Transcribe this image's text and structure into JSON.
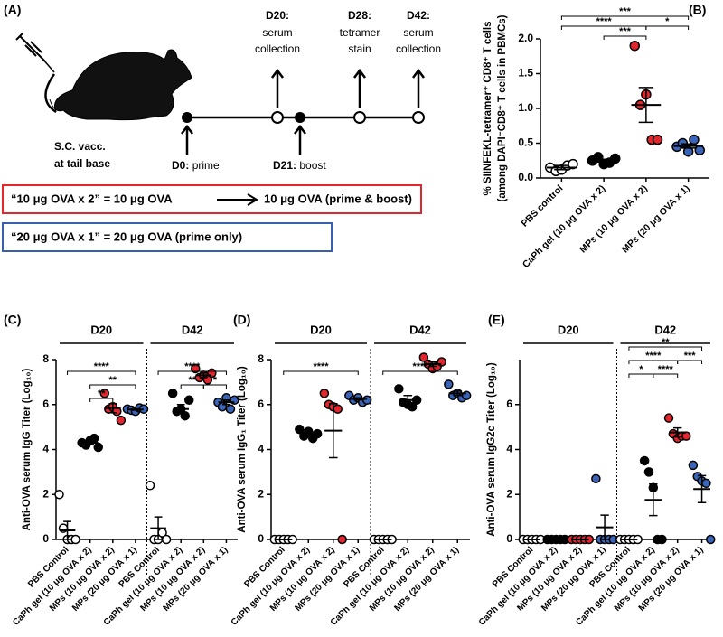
{
  "diagram": {
    "panel": "(A)",
    "injection": [
      "S.C. vacc.",
      "at tail base"
    ],
    "timepoints": [
      {
        "day": "D0:",
        "event": [
          "prime"
        ]
      },
      {
        "day": "D20:",
        "event": [
          "serum",
          "collection"
        ]
      },
      {
        "day": "D21:",
        "event": [
          "boost"
        ]
      },
      {
        "day": "D28:",
        "event": [
          "tetramer",
          "stain"
        ]
      },
      {
        "day": "D42:",
        "event": [
          "serum",
          "collection"
        ]
      }
    ],
    "boxes": [
      {
        "left": "“10 μg OVA x 2” = 10 μg OVA",
        "right": "10 μg OVA (prime & boost)",
        "color": "#e3262e"
      },
      {
        "left": "“20 μg OVA x 1” = 20 μg OVA (prime only)",
        "color": "#3a5fb0"
      }
    ]
  },
  "chart_data": [
    {
      "type": "dot",
      "panel": "(B)",
      "ylabel": [
        "% SIINFEKL-tetramer⁺ CD8⁺ T cells",
        "(among DAPI⁻CD8⁺ T cells in PBMCs)"
      ],
      "categories": [
        "PBS control",
        "CaPh gel (10 μg OVA x 2)",
        "MPs (10 μg OVA x 2)",
        "MPs (20 μg OVA x 1)"
      ],
      "colors": [
        "#ffffff",
        "#000000",
        "#e3262e",
        "#3a64b8"
      ],
      "points": [
        [
          0.15,
          0.1,
          0.12,
          0.18,
          0.2
        ],
        [
          0.25,
          0.3,
          0.2,
          0.22,
          0.28
        ],
        [
          1.9,
          1.05,
          1.2,
          0.55,
          0.55
        ],
        [
          0.45,
          0.5,
          0.38,
          0.55,
          0.4
        ]
      ],
      "means": [
        0.15,
        0.25,
        1.05,
        0.46
      ],
      "errors": [
        0.03,
        0.02,
        0.25,
        0.03
      ],
      "ylim": [
        0,
        2
      ],
      "yticks": [
        {
          "value": 0,
          "label": "0.0"
        },
        {
          "value": 0.5,
          "label": "0.5"
        },
        {
          "value": 1,
          "label": "1.0"
        },
        {
          "value": 1.5,
          "label": "1.5"
        },
        {
          "value": 2,
          "label": "2.0"
        }
      ],
      "comparisons": [
        {
          "pair": [
            0,
            3
          ],
          "label": "***"
        },
        {
          "pair": [
            0,
            2
          ],
          "label": "****"
        },
        {
          "pair": [
            1,
            2
          ],
          "label": "***"
        },
        {
          "pair": [
            2,
            3
          ],
          "label": "*"
        }
      ]
    },
    {
      "type": "dot",
      "panel": "(C)",
      "ylabel": "Anti-OVA serum IgG Titer (Log₁₀)",
      "groups": [
        "D20",
        "D42"
      ],
      "categories": [
        "PBS Control",
        "CaPh gel (10 μg OVA x 2)",
        "MPs (10 μg OVA x 2)",
        "MPs (20 μg OVA x 1)",
        "PBS Control",
        "CaPh gel (10 μg OVA x 2)",
        "MPs (10 μg OVA x 2)",
        "MPs (20 μg OVA x 1)"
      ],
      "colors": [
        "#ffffff",
        "#000000",
        "#e3262e",
        "#3a64b8",
        "#ffffff",
        "#000000",
        "#e3262e",
        "#3a64b8"
      ],
      "points": [
        [
          2,
          0.5,
          0,
          0,
          0
        ],
        [
          4.3,
          4.2,
          4.4,
          4.5,
          4.1
        ],
        [
          6.5,
          5.8,
          5.9,
          5.7,
          5.3
        ],
        [
          5.8,
          5.75,
          5.7,
          5.85,
          5.8
        ],
        [
          2.4,
          0,
          0,
          0.3,
          0
        ],
        [
          6.5,
          5.7,
          5.8,
          5.5,
          6.2
        ],
        [
          7.6,
          7.2,
          7.3,
          7.1,
          7.4
        ],
        [
          6.1,
          5.9,
          6.3,
          5.8,
          6.2
        ]
      ],
      "means": [
        0.4,
        4.3,
        5.84,
        5.78,
        0.5,
        5.8,
        7.3,
        6.1
      ],
      "errors": [
        0.4,
        0.08,
        0.2,
        0.03,
        0.5,
        0.2,
        0.1,
        0.1
      ],
      "ylim": [
        0,
        8
      ],
      "yticks": [
        0,
        2,
        4,
        6,
        8
      ],
      "comparisons": [
        {
          "pair": [
            0,
            3
          ],
          "label": "****"
        },
        {
          "pair": [
            1,
            3
          ],
          "label": "**"
        },
        {
          "pair": [
            1,
            2
          ],
          "label": "**"
        },
        {
          "pair": [
            4,
            7
          ],
          "label": "****"
        },
        {
          "pair": [
            5,
            6
          ],
          "label": "**"
        },
        {
          "pair": [
            6,
            7
          ],
          "label": "*"
        }
      ]
    },
    {
      "type": "dot",
      "panel": "(D)",
      "ylabel": "Anti-OVA serum IgG₁ Titer (Log₁₀)",
      "groups": [
        "D20",
        "D42"
      ],
      "categories": [
        "PBS Control",
        "CaPh gel (10 μg OVA x 2)",
        "MPs (10 μg OVA x 2)",
        "MPs (20 μg OVA x 1)",
        "PBS Control",
        "CaPh gel (10 μg OVA x 2)",
        "MPs (10 μg OVA x 2)",
        "MPs (20 μg OVA x 1)"
      ],
      "colors": [
        "#ffffff",
        "#000000",
        "#e3262e",
        "#3a64b8",
        "#ffffff",
        "#000000",
        "#e3262e",
        "#3a64b8"
      ],
      "points": [
        [
          0,
          0,
          0,
          0,
          0
        ],
        [
          4.9,
          4.6,
          4.8,
          4.5,
          4.7
        ],
        [
          6.5,
          6.0,
          5.9,
          5.8,
          0
        ],
        [
          6.4,
          6.2,
          6.3,
          6.1,
          6.2
        ],
        [
          0,
          0,
          0,
          0,
          0
        ],
        [
          6.7,
          6.1,
          6.0,
          5.9,
          6.2
        ],
        [
          8.1,
          7.8,
          7.6,
          7.7,
          7.9
        ],
        [
          6.9,
          6.4,
          6.5,
          6.3,
          6.4
        ]
      ],
      "means": [
        0,
        4.7,
        4.84,
        6.25,
        0,
        6.2,
        7.8,
        6.5
      ],
      "errors": [
        0,
        0.1,
        1.2,
        0.05,
        0,
        0.2,
        0.1,
        0.1
      ],
      "ylim": [
        0,
        8
      ],
      "yticks": [
        0,
        2,
        4,
        6,
        8
      ],
      "comparisons": [
        {
          "pair": [
            0,
            3
          ],
          "label": "****"
        },
        {
          "pair": [
            4,
            7
          ],
          "label": "****"
        }
      ]
    },
    {
      "type": "dot",
      "panel": "(E)",
      "ylabel": "Anti-OVA serum IgG2c Titer (Log₁₀)",
      "groups": [
        "D20",
        "D42"
      ],
      "categories": [
        "PBS Control",
        "CaPh gel (10 μg OVA x 2)",
        "MPs (10 μg OVA x 2)",
        "MPs (20 μg OVA x 1)",
        "PBS Control",
        "CaPh gel (10 μg OVA x 2)",
        "MPs (10 μg OVA x 2)",
        "MPs (20 μg OVA x 1)"
      ],
      "colors": [
        "#ffffff",
        "#000000",
        "#e3262e",
        "#3a64b8",
        "#ffffff",
        "#000000",
        "#e3262e",
        "#3a64b8"
      ],
      "points": [
        [
          0,
          0,
          0,
          0,
          0
        ],
        [
          0,
          0,
          0,
          0,
          0
        ],
        [
          0,
          0,
          0,
          0,
          0
        ],
        [
          2.7,
          0,
          0,
          0,
          0
        ],
        [
          0,
          0,
          0,
          0,
          0
        ],
        [
          3.5,
          3.0,
          2.3,
          0,
          0
        ],
        [
          5.4,
          4.7,
          4.5,
          4.6,
          4.6
        ],
        [
          3.3,
          2.8,
          2.6,
          2.5,
          0
        ]
      ],
      "means": [
        0,
        0,
        0,
        0.54,
        0,
        1.76,
        4.76,
        2.24
      ],
      "errors": [
        0,
        0,
        0,
        0.54,
        0,
        0.7,
        0.2,
        0.6
      ],
      "ylim": [
        0,
        8
      ],
      "yticks": [
        0,
        2,
        4,
        6
      ],
      "comparisons": [
        {
          "pair": [
            4,
            7
          ],
          "label": "**"
        },
        {
          "pair": [
            4,
            6
          ],
          "label": "****"
        },
        {
          "pair": [
            5,
            6
          ],
          "label": "****"
        },
        {
          "pair": [
            6,
            7
          ],
          "label": "***"
        },
        {
          "pair": [
            4,
            5
          ],
          "label": "*"
        }
      ]
    }
  ]
}
